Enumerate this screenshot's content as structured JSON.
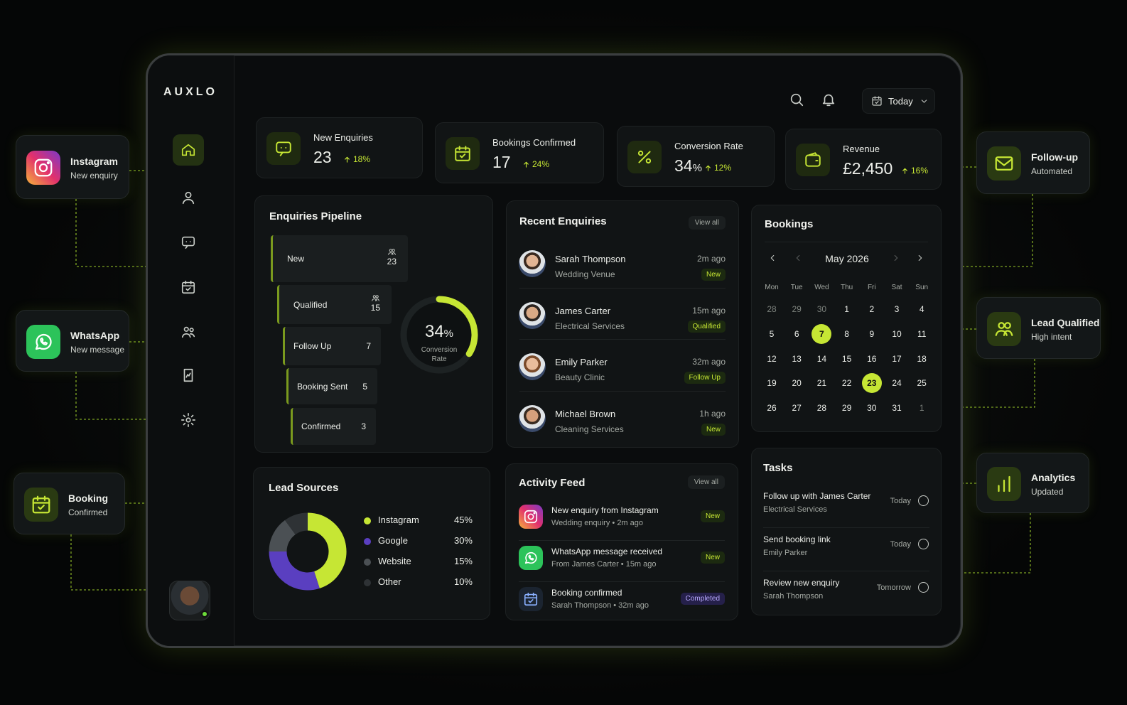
{
  "brand": "AUXLO",
  "header": {
    "date_filter": "Today"
  },
  "kpis": [
    {
      "label": "New Enquiries",
      "value": "23",
      "unit": "",
      "change": "18%"
    },
    {
      "label": "Bookings Confirmed",
      "value": "17",
      "unit": "",
      "change": "24%"
    },
    {
      "label": "Conversion Rate",
      "value": "34",
      "unit": "%",
      "change": "12%"
    },
    {
      "label": "Revenue",
      "value": "£2,450",
      "unit": "",
      "change": "16%"
    }
  ],
  "pipeline": {
    "title": "Enquiries Pipeline",
    "stages": [
      {
        "name": "New",
        "count": "23"
      },
      {
        "name": "Qualified",
        "count": "15"
      },
      {
        "name": "Follow Up",
        "count": "7"
      },
      {
        "name": "Booking Sent",
        "count": "5"
      },
      {
        "name": "Confirmed",
        "count": "3"
      }
    ],
    "gauge": {
      "value": 34,
      "unit": "%",
      "label": "Conversion Rate",
      "color": "#c6e634"
    }
  },
  "lead_sources": {
    "title": "Lead Sources",
    "names": [
      "Instagram",
      "Google",
      "Website",
      "Other"
    ],
    "values": [
      45,
      30,
      15,
      10
    ],
    "value_labels": [
      "45%",
      "30%",
      "15%",
      "10%"
    ],
    "colors": [
      "#c6e634",
      "#5a3fc0",
      "#4b5054",
      "#2e3235"
    ]
  },
  "recent_enquiries": {
    "title": "Recent Enquiries",
    "view_all": "View all",
    "items": [
      {
        "name": "Sarah Thompson",
        "business": "Wedding Venue",
        "time": "2m ago",
        "status": "New"
      },
      {
        "name": "James Carter",
        "business": "Electrical Services",
        "time": "15m ago",
        "status": "Qualified"
      },
      {
        "name": "Emily Parker",
        "business": "Beauty Clinic",
        "time": "32m ago",
        "status": "Follow Up"
      },
      {
        "name": "Michael Brown",
        "business": "Cleaning Services",
        "time": "1h ago",
        "status": "New"
      }
    ]
  },
  "bookings": {
    "title": "Bookings",
    "month": "May 2026",
    "weekdays": [
      "Mon",
      "Tue",
      "Wed",
      "Thu",
      "Fri",
      "Sat",
      "Sun"
    ],
    "days": [
      {
        "d": 28,
        "muted": true
      },
      {
        "d": 29,
        "muted": true
      },
      {
        "d": 30,
        "muted": true
      },
      {
        "d": 1
      },
      {
        "d": 2
      },
      {
        "d": 3
      },
      {
        "d": 4
      },
      {
        "d": 5
      },
      {
        "d": 6
      },
      {
        "d": 7,
        "highlight": true
      },
      {
        "d": 8
      },
      {
        "d": 9
      },
      {
        "d": 10
      },
      {
        "d": 11
      },
      {
        "d": 12
      },
      {
        "d": 13
      },
      {
        "d": 14
      },
      {
        "d": 15
      },
      {
        "d": 16
      },
      {
        "d": 17
      },
      {
        "d": 18
      },
      {
        "d": 19
      },
      {
        "d": 20
      },
      {
        "d": 21
      },
      {
        "d": 22
      },
      {
        "d": 23,
        "highlight": true
      },
      {
        "d": 24
      },
      {
        "d": 25
      },
      {
        "d": 26
      },
      {
        "d": 27
      },
      {
        "d": 28
      },
      {
        "d": 29
      },
      {
        "d": 30
      },
      {
        "d": 31
      },
      {
        "d": 1,
        "muted": true
      }
    ]
  },
  "activity_feed": {
    "title": "Activity Feed",
    "view_all": "View all",
    "items": [
      {
        "title": "New enquiry from Instagram",
        "subtitle": "Wedding enquiry • 2m ago",
        "status": "New"
      },
      {
        "title": "WhatsApp message received",
        "subtitle": "From James Carter • 15m ago",
        "status": "New"
      },
      {
        "title": "Booking confirmed",
        "subtitle": "Sarah Thompson • 32m ago",
        "status": "Completed"
      }
    ]
  },
  "tasks": {
    "title": "Tasks",
    "items": [
      {
        "title": "Follow up with James Carter",
        "person": "Electrical Services",
        "due": "Today"
      },
      {
        "title": "Send booking link",
        "person": "Emily Parker",
        "due": "Today"
      },
      {
        "title": "Review new enquiry",
        "person": "Sarah Thompson",
        "due": "Tomorrow"
      }
    ]
  },
  "integrations": {
    "left": [
      {
        "title": "Instagram",
        "subtitle": "New enquiry"
      },
      {
        "title": "WhatsApp",
        "subtitle": "New message"
      },
      {
        "title": "Booking",
        "subtitle": "Confirmed"
      }
    ],
    "right": [
      {
        "title": "Follow-up",
        "subtitle": "Automated"
      },
      {
        "title": "Lead Qualified",
        "subtitle": "High intent"
      },
      {
        "title": "Analytics",
        "subtitle": "Updated"
      }
    ]
  }
}
